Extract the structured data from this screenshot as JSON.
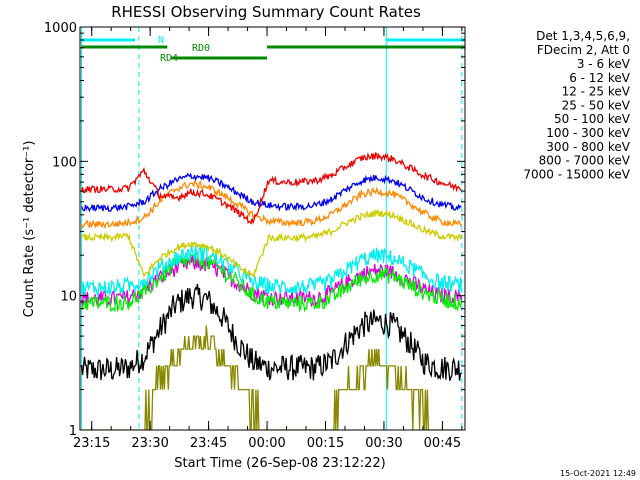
{
  "chart_data": {
    "type": "line",
    "title": "RHESSI Observing Summary Count Rates",
    "xlabel": "Start Time (26-Sep-08 23:12:22)",
    "ylabel": "Count Rate (s⁻¹ detector⁻¹)",
    "y_scale": "log",
    "ylim": [
      1,
      1000
    ],
    "xlim_minutes_after_start": [
      -0.4,
      98.4
    ],
    "x_ticks": [
      {
        "label": "23:15",
        "value": 2.6
      },
      {
        "label": "23:30",
        "value": 17.6
      },
      {
        "label": "23:45",
        "value": 32.6
      },
      {
        "label": "00:00",
        "value": 47.6
      },
      {
        "label": "00:15",
        "value": 62.6
      },
      {
        "label": "00:30",
        "value": 77.6
      },
      {
        "label": "00:45",
        "value": 92.6
      }
    ],
    "y_ticks": [
      {
        "label": "1",
        "value": 1
      },
      {
        "label": "10",
        "value": 10
      },
      {
        "label": "100",
        "value": 100
      },
      {
        "label": "1000",
        "value": 1000
      }
    ],
    "legend_position": "top-right",
    "legend_header": [
      "Det 1,3,4,5,6,9,",
      "FDecim 2, Att 0"
    ],
    "series": [
      {
        "name": "3 - 6 keV",
        "color": "#000000",
        "values": [
          2.8,
          2.8,
          2.8,
          2.9,
          3.5,
          5.5,
          8.5,
          10.0,
          9.5,
          7.0,
          4.5,
          3.2,
          2.9,
          2.9,
          2.9,
          2.9,
          3.2,
          4.5,
          6.0,
          6.5,
          6.0,
          4.5,
          3.2,
          2.9,
          2.9
        ]
      },
      {
        "name": "6 - 12 keV",
        "color": "#dd00dd",
        "values": [
          9.5,
          9.5,
          9.5,
          9.7,
          11.0,
          13.5,
          16.0,
          17.5,
          17.0,
          15.0,
          12.5,
          10.5,
          9.8,
          9.6,
          9.6,
          9.6,
          10.5,
          12.5,
          14.5,
          15.5,
          14.8,
          13.0,
          11.0,
          10.0,
          9.8
        ]
      },
      {
        "name": "12 - 25 keV",
        "color": "#00ee00",
        "values": [
          8.8,
          8.8,
          8.8,
          9.0,
          10.5,
          13.5,
          17.0,
          18.5,
          18.0,
          15.5,
          12.5,
          10.0,
          9.0,
          8.8,
          8.8,
          8.8,
          9.5,
          11.5,
          13.5,
          14.5,
          14.0,
          12.0,
          10.5,
          9.5,
          9.0
        ]
      },
      {
        "name": "25 - 50 keV",
        "color": "#00eeee",
        "values": [
          11.5,
          11.5,
          11.5,
          11.8,
          13.0,
          16.0,
          19.0,
          21.0,
          20.5,
          18.0,
          15.0,
          12.5,
          11.8,
          11.6,
          11.6,
          11.7,
          12.8,
          15.5,
          18.5,
          20.0,
          19.0,
          16.5,
          14.0,
          12.5,
          12.0
        ]
      },
      {
        "name": "50 - 100 keV",
        "color": "#cccc00",
        "values": [
          27.0,
          27.0,
          27.0,
          28.0,
          14.0,
          19.0,
          22.5,
          24.5,
          23.5,
          20.5,
          16.5,
          14.0,
          27.0,
          27.0,
          27.0,
          27.5,
          30.0,
          35.0,
          39.0,
          41.5,
          40.0,
          35.0,
          30.5,
          28.0,
          27.0
        ]
      },
      {
        "name": "100 - 300 keV",
        "color": "#ff8800",
        "values": [
          34.0,
          34.0,
          34.0,
          35.0,
          38.0,
          50.0,
          62.0,
          68.0,
          65.0,
          57.0,
          48.0,
          40.0,
          36.0,
          35.0,
          35.0,
          36.0,
          40.0,
          48.0,
          57.0,
          60.0,
          57.0,
          49.0,
          41.0,
          36.0,
          34.0
        ]
      },
      {
        "name": "300 - 800 keV",
        "color": "#0000ee",
        "values": [
          45.0,
          45.0,
          45.0,
          46.0,
          50.0,
          62.0,
          72.0,
          78.0,
          76.0,
          68.0,
          58.0,
          50.0,
          47.0,
          46.0,
          46.0,
          47.0,
          52.0,
          62.0,
          72.0,
          76.0,
          72.0,
          62.0,
          53.0,
          48.0,
          45.0
        ]
      },
      {
        "name": "800 - 7000 keV",
        "color": "#ee0000",
        "values": [
          62.0,
          62.0,
          62.0,
          63.0,
          85.0,
          56.0,
          53.0,
          59.0,
          57.0,
          50.0,
          42.0,
          35.0,
          72.0,
          70.0,
          70.0,
          72.0,
          78.0,
          92.0,
          106.0,
          110.0,
          104.0,
          90.0,
          78.0,
          70.0,
          64.0
        ]
      },
      {
        "name": "7000 - 15000 keV",
        "color": "#888800",
        "values": [
          1.0,
          1.0,
          1.0,
          1.0,
          1.2,
          2.5,
          3.5,
          4.5,
          4.5,
          3.5,
          2.5,
          1.5,
          1.0,
          1.0,
          1.0,
          1.0,
          1.2,
          2.0,
          2.8,
          3.2,
          2.8,
          2.0,
          1.5,
          1.0,
          1.0
        ]
      }
    ],
    "x": [
      0,
      4,
      8,
      12,
      16,
      20,
      24,
      28,
      32,
      36,
      40,
      44,
      48,
      52,
      56,
      60,
      64,
      68,
      72,
      76,
      80,
      84,
      88,
      92,
      96
    ],
    "top_flags": [
      {
        "label": "N",
        "color": "#00eeee",
        "segments": [
          [
            0,
            13.7
          ],
          [
            78,
            98.3
          ]
        ]
      },
      {
        "label": "RD0",
        "color": "#008800",
        "segments": [
          [
            0,
            22
          ],
          [
            47.6,
            98.3
          ]
        ]
      },
      {
        "label": "RD4",
        "color": "#008800",
        "segments": [
          [
            23,
            47.6
          ]
        ]
      }
    ],
    "markers": [
      {
        "color": "#00eeee",
        "style": "solid",
        "x": 0
      },
      {
        "color": "#00eeee",
        "style": "dashed",
        "x": 14.7
      },
      {
        "color": "#00eeee",
        "style": "solid",
        "x": 78.2
      },
      {
        "color": "#00eeee",
        "style": "dashed",
        "x": 97.6
      }
    ]
  },
  "footer": {
    "timestamp": "15-Oct-2021 12:49"
  }
}
